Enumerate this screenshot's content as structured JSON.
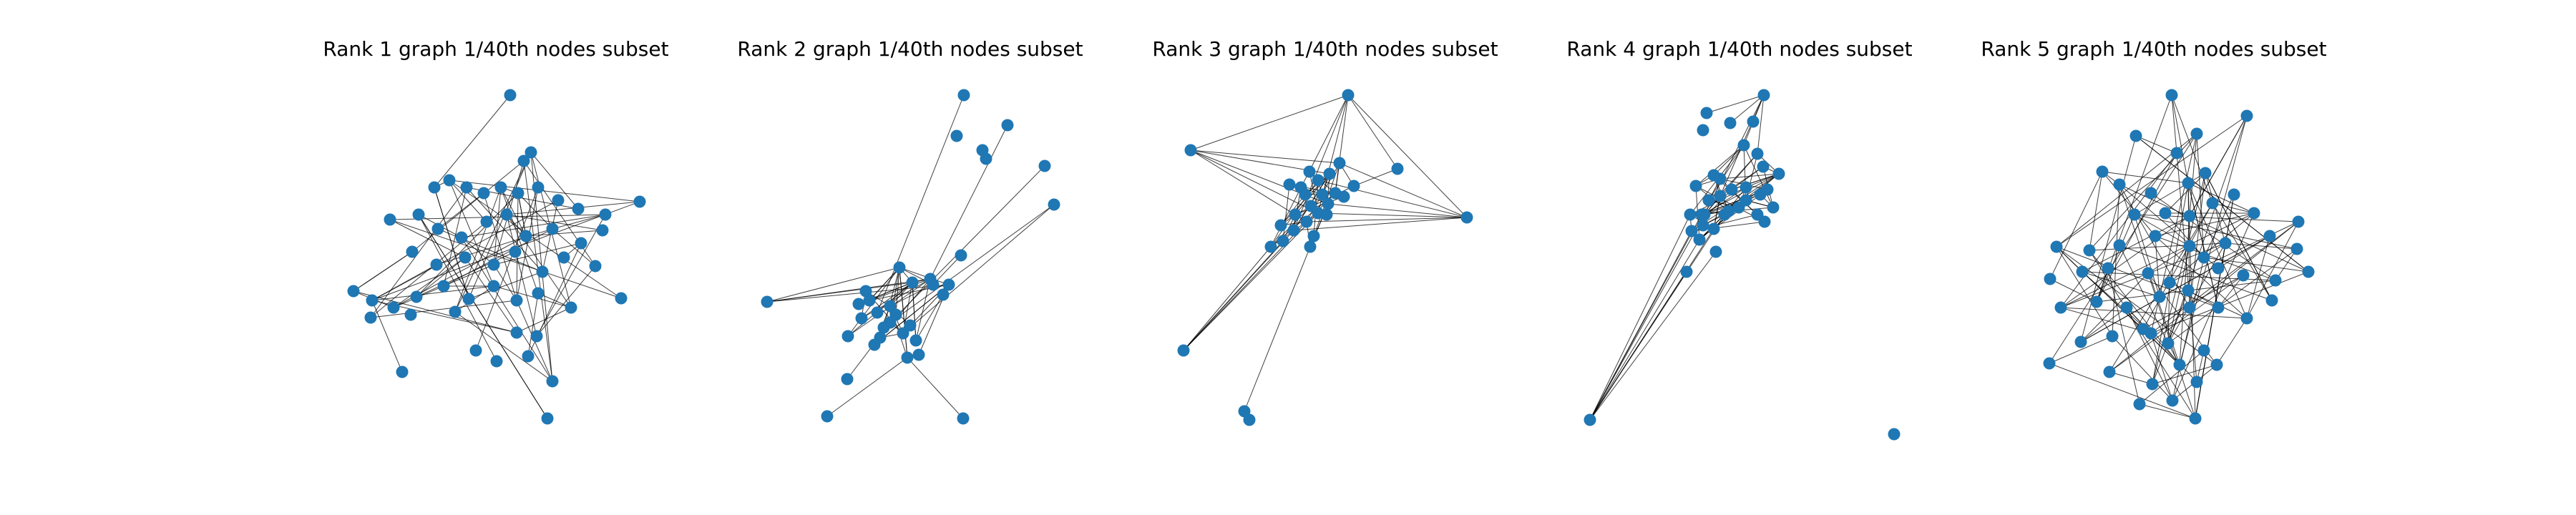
{
  "figure": {
    "node_color": "#1f77b4",
    "edge_color": "#000000",
    "background": "#ffffff"
  },
  "panels": [
    {
      "title": "Rank 1 graph 1/40th nodes subset"
    },
    {
      "title": "Rank 2 graph 1/40th nodes subset"
    },
    {
      "title": "Rank 3 graph 1/40th nodes subset"
    },
    {
      "title": "Rank 4 graph 1/40th nodes subset"
    },
    {
      "title": "Rank 5 graph 1/40th nodes subset"
    }
  ]
}
